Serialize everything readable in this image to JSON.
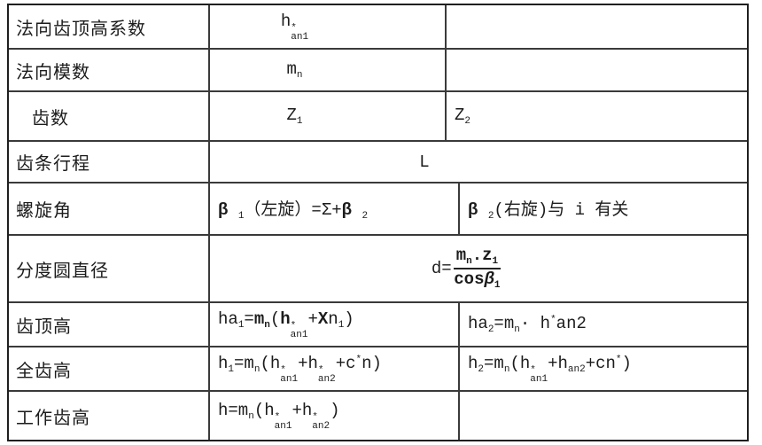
{
  "colors": {
    "border": "#3a3a3a",
    "outer_border": "#1f1f1f",
    "text": "#1c1c1c",
    "background": "#ffffff"
  },
  "table": {
    "rows": [
      {
        "label": "法向齿顶高系数",
        "col2": "h^{*}_{an1}",
        "col3": ""
      },
      {
        "label": "法向模数",
        "col2": "m_{n}",
        "col3": ""
      },
      {
        "label": "齿数",
        "col2": "Z_{1}",
        "col3": "Z_{2}"
      },
      {
        "label": "齿条行程",
        "merged": "L"
      },
      {
        "label": "螺旋角",
        "col2": "**β** _{1}（左旋）=Σ+**β** _{2}",
        "col3": "**β** _{2}(右旋)与 i 有关"
      },
      {
        "label": "分度圆直径",
        "formula_lead": "d=",
        "numerator": "**m_{n}.z_{1}**",
        "denominator": "**cos//β//_{1}**"
      },
      {
        "label": "齿顶高",
        "col2": "ha_{1}=**m_{n}**(**h**^{*}_{an1}+**X**n_{1})",
        "col3": "ha_{2}=m_{n}· h^{*}an2"
      },
      {
        "label": "全齿高",
        "col2": "h_{1}=m_{n}(h^{*}_{an1}+h^{*}_{an2}+c^{*}n)",
        "col3": "h_{2}=m_{n}(h^{*}_{an1}+h_{an2}+cn^{*})"
      },
      {
        "label": "工作齿高",
        "col2": "h=m_{n}(h^{*}_{an1}+h^{*}_{an2})",
        "col3": ""
      }
    ]
  }
}
